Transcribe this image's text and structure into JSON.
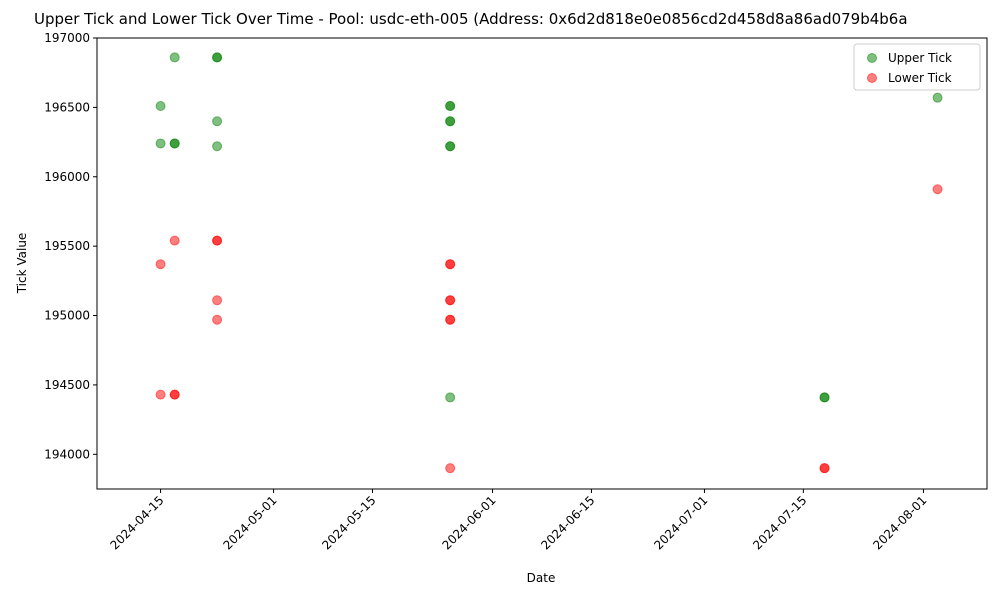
{
  "chart_data": {
    "type": "scatter",
    "title": "Upper Tick and Lower Tick Over Time - Pool: usdc-eth-005 (Address: 0x6d2d818e0e0856cd2d458d8a86ad079b4b6a",
    "xlabel": "Date",
    "ylabel": "Tick Value",
    "x_ticks": [
      "2024-04-15",
      "2024-05-01",
      "2024-05-15",
      "2024-06-01",
      "2024-06-15",
      "2024-07-01",
      "2024-07-15",
      "2024-08-01"
    ],
    "y_ticks": [
      194000,
      194500,
      195000,
      195500,
      196000,
      196500,
      197000
    ],
    "xlim": [
      "2024-04-06",
      "2024-08-10"
    ],
    "ylim": [
      193750,
      197000
    ],
    "grid": false,
    "legend_position": "top-right",
    "series": [
      {
        "name": "Upper Tick",
        "color": "#008000",
        "points": [
          {
            "x": "2024-04-15",
            "y": 196510
          },
          {
            "x": "2024-04-15",
            "y": 196240
          },
          {
            "x": "2024-04-17",
            "y": 196860
          },
          {
            "x": "2024-04-17",
            "y": 196240
          },
          {
            "x": "2024-04-17",
            "y": 196240
          },
          {
            "x": "2024-04-23",
            "y": 196860
          },
          {
            "x": "2024-04-23",
            "y": 196860
          },
          {
            "x": "2024-04-23",
            "y": 196400
          },
          {
            "x": "2024-04-23",
            "y": 196220
          },
          {
            "x": "2024-05-26",
            "y": 196510
          },
          {
            "x": "2024-05-26",
            "y": 196510
          },
          {
            "x": "2024-05-26",
            "y": 196400
          },
          {
            "x": "2024-05-26",
            "y": 196400
          },
          {
            "x": "2024-05-26",
            "y": 196220
          },
          {
            "x": "2024-05-26",
            "y": 196220
          },
          {
            "x": "2024-05-26",
            "y": 194410
          },
          {
            "x": "2024-07-18",
            "y": 194410
          },
          {
            "x": "2024-07-18",
            "y": 194410
          },
          {
            "x": "2024-08-03",
            "y": 196570
          }
        ]
      },
      {
        "name": "Lower Tick",
        "color": "#ff0000",
        "points": [
          {
            "x": "2024-04-15",
            "y": 195370
          },
          {
            "x": "2024-04-15",
            "y": 194430
          },
          {
            "x": "2024-04-17",
            "y": 195540
          },
          {
            "x": "2024-04-17",
            "y": 194430
          },
          {
            "x": "2024-04-17",
            "y": 194430
          },
          {
            "x": "2024-04-23",
            "y": 195540
          },
          {
            "x": "2024-04-23",
            "y": 195540
          },
          {
            "x": "2024-04-23",
            "y": 195110
          },
          {
            "x": "2024-04-23",
            "y": 194970
          },
          {
            "x": "2024-05-26",
            "y": 195370
          },
          {
            "x": "2024-05-26",
            "y": 195370
          },
          {
            "x": "2024-05-26",
            "y": 195110
          },
          {
            "x": "2024-05-26",
            "y": 195110
          },
          {
            "x": "2024-05-26",
            "y": 194970
          },
          {
            "x": "2024-05-26",
            "y": 194970
          },
          {
            "x": "2024-05-26",
            "y": 193900
          },
          {
            "x": "2024-07-18",
            "y": 193900
          },
          {
            "x": "2024-07-18",
            "y": 193900
          },
          {
            "x": "2024-08-03",
            "y": 195910
          }
        ]
      }
    ]
  }
}
